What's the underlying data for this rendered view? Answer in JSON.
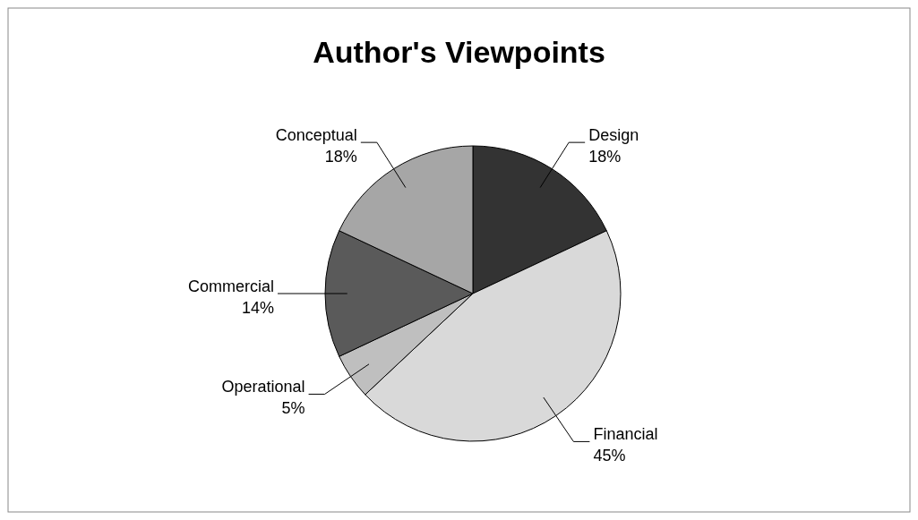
{
  "chart_data": {
    "type": "pie",
    "title": "Author's Viewpoints",
    "categories": [
      "Design",
      "Financial",
      "Operational",
      "Commercial",
      "Conceptual"
    ],
    "values": [
      18,
      45,
      5,
      14,
      18
    ],
    "value_labels": [
      "18%",
      "45%",
      "5%",
      "14%",
      "18%"
    ],
    "colors": [
      "#333333",
      "#d9d9d9",
      "#bfbfbf",
      "#5a5a5a",
      "#a6a6a6"
    ]
  }
}
